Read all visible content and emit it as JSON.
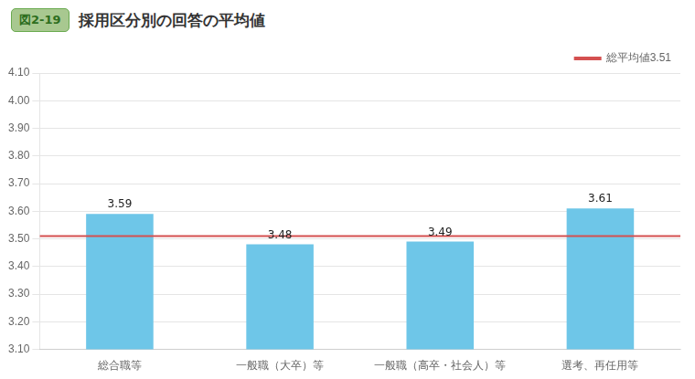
{
  "chart_data": {
    "type": "bar",
    "title": "採用区分別の回答の平均値",
    "annotations": [
      {
        "text": "図2-19"
      },
      {
        "type": "hline",
        "y": 3.51,
        "label": "総平均値3.51",
        "color": "#D45050"
      }
    ],
    "categories": [
      "総合職等",
      "一般職（大卒）等",
      "一般職（高卒・社会人）等",
      "選考、再任用等"
    ],
    "values": [
      3.59,
      3.48,
      3.49,
      3.61
    ],
    "color": "#6EC6E8",
    "ylim": [
      3.1,
      4.1
    ],
    "yticks": [
      {
        "value": 3.1,
        "label": "3.10"
      },
      {
        "value": 3.2,
        "label": "3.20"
      },
      {
        "value": 3.3,
        "label": "3.30"
      },
      {
        "value": 3.4,
        "label": "3.40"
      },
      {
        "value": 3.5,
        "label": "3.50"
      },
      {
        "value": 3.6,
        "label": "3.60"
      },
      {
        "value": 3.7,
        "label": "3.70"
      },
      {
        "value": 3.8,
        "label": "3.80"
      },
      {
        "value": 3.9,
        "label": "3.90"
      },
      {
        "value": 4.0,
        "label": "4.00"
      },
      {
        "value": 4.1,
        "label": "4.10"
      }
    ],
    "grid": true,
    "legend": "upper right",
    "data_labels": true
  }
}
